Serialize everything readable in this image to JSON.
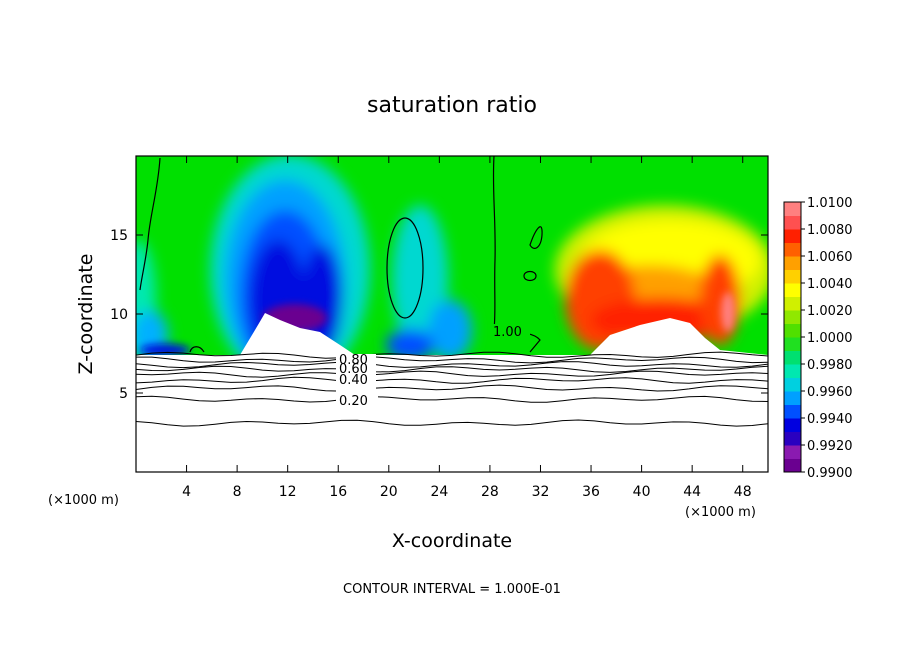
{
  "chart_data": {
    "type": "heatmap",
    "title": "saturation ratio",
    "xlabel": "X-coordinate",
    "ylabel": "Z-coordinate",
    "x_unit": "(×1000 m)",
    "x_unit_right": "(×1000 m)",
    "footer": "CONTOUR INTERVAL = 1.000E-01",
    "xlim": [
      0,
      50
    ],
    "ylim": [
      0,
      20
    ],
    "x_ticks": [
      4,
      8,
      12,
      16,
      20,
      24,
      28,
      32,
      36,
      40,
      44,
      48
    ],
    "y_ticks": [
      5,
      10,
      15
    ],
    "colorbar": {
      "ticks": [
        "0.9900",
        "0.9920",
        "0.9940",
        "0.9960",
        "0.9980",
        "1.0000",
        "1.0020",
        "1.0040",
        "1.0060",
        "1.0080",
        "1.0100"
      ],
      "colors": [
        "#6a0090",
        "#8a1ab0",
        "#2a00c0",
        "#0000e0",
        "#0050ff",
        "#00a0ff",
        "#00d0e0",
        "#00e8b0",
        "#00e070",
        "#20e020",
        "#50e000",
        "#90e800",
        "#d0f000",
        "#ffff00",
        "#ffd000",
        "#ffa000",
        "#ff6000",
        "#ff2000",
        "#ff5050",
        "#ff8080"
      ]
    },
    "contour_labels": [
      "1.00",
      "0.80",
      "0.60",
      "0.40",
      "0.20"
    ],
    "lower_contour_levels_km": [
      7.4,
      7.1,
      6.8,
      6.5,
      6.2,
      5.8,
      5.3,
      4.6,
      3.1
    ],
    "colors": {
      "background": "#ffffff",
      "neutral_green": "#00e000",
      "dry_blue": "#0000d0",
      "moist_red": "#ff2000"
    }
  }
}
